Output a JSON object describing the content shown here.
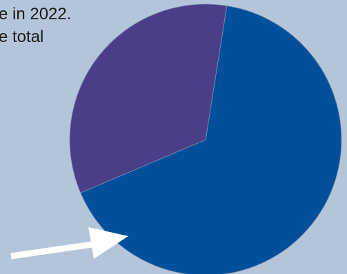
{
  "caption": {
    "line1": "e in 2022.",
    "line2": "e total"
  },
  "colors": {
    "background": "#b4c5d9",
    "slice_main": "#02509b",
    "slice_minor": "#4b3e88",
    "arrow": "#ffffff"
  },
  "chart_data": {
    "type": "pie",
    "title": "",
    "slices": [
      {
        "label": "",
        "value": 66.1,
        "color": "#02509b"
      },
      {
        "label": "",
        "value": 33.9,
        "color": "#4b3e88"
      }
    ],
    "start_angle_deg": 9,
    "annotation": "arrow-pointing-to-smaller-slice"
  }
}
